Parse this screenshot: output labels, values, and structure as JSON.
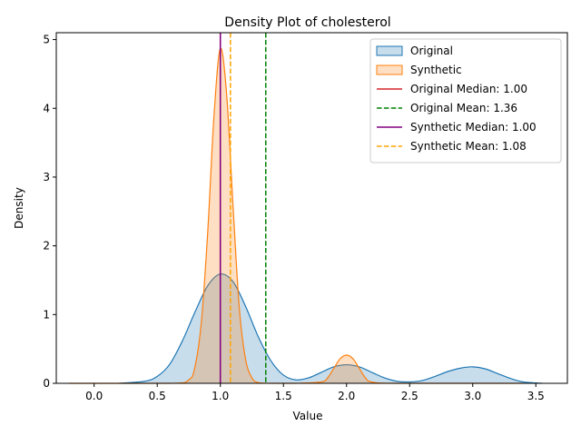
{
  "chart_data": {
    "type": "area",
    "title": "Density Plot of cholesterol",
    "xlabel": "Value",
    "ylabel": "Density",
    "xlim": [
      -0.3,
      3.75
    ],
    "ylim": [
      0,
      5.1
    ],
    "xticks": [
      "0.0",
      "0.5",
      "1.0",
      "1.5",
      "2.0",
      "2.5",
      "3.0",
      "3.5"
    ],
    "yticks": [
      "0",
      "1",
      "2",
      "3",
      "4",
      "5"
    ],
    "grid": false,
    "legend_position": "top-right",
    "series": [
      {
        "name": "Original",
        "color": "#1f77b4",
        "x": [
          0.2,
          0.4,
          0.5,
          0.6,
          0.7,
          0.8,
          0.9,
          1.0,
          1.1,
          1.2,
          1.3,
          1.4,
          1.5,
          1.6,
          1.7,
          1.8,
          1.9,
          2.0,
          2.1,
          2.2,
          2.3,
          2.4,
          2.5,
          2.6,
          2.7,
          2.8,
          2.9,
          3.0,
          3.1,
          3.2,
          3.3,
          3.4,
          3.55
        ],
        "y": [
          0.0,
          0.03,
          0.1,
          0.28,
          0.62,
          1.04,
          1.42,
          1.59,
          1.48,
          1.12,
          0.68,
          0.33,
          0.12,
          0.05,
          0.08,
          0.16,
          0.24,
          0.27,
          0.24,
          0.16,
          0.08,
          0.03,
          0.02,
          0.04,
          0.1,
          0.17,
          0.22,
          0.24,
          0.21,
          0.14,
          0.07,
          0.02,
          0.0
        ]
      },
      {
        "name": "Synthetic",
        "color": "#ff7f0e",
        "x": [
          -0.2,
          0.6,
          0.75,
          0.8,
          0.85,
          0.9,
          0.95,
          1.0,
          1.05,
          1.1,
          1.15,
          1.2,
          1.25,
          1.3,
          1.4,
          1.6,
          1.8,
          1.85,
          1.9,
          1.95,
          2.0,
          2.05,
          2.1,
          2.15,
          2.2,
          2.4,
          3.4
        ],
        "y": [
          0.0,
          0.0,
          0.05,
          0.25,
          0.9,
          2.2,
          3.9,
          4.87,
          4.2,
          2.6,
          1.1,
          0.35,
          0.08,
          0.01,
          0.0,
          0.0,
          0.02,
          0.08,
          0.22,
          0.36,
          0.41,
          0.36,
          0.22,
          0.08,
          0.02,
          0.0,
          0.0
        ]
      }
    ],
    "reference_lines": [
      {
        "label": "Original Median: 1.00",
        "x": 1.0,
        "color": "#d62728",
        "style": "solid"
      },
      {
        "label": "Original Mean: 1.36",
        "x": 1.36,
        "color": "#008000",
        "style": "dashed"
      },
      {
        "label": "Synthetic Median: 1.00",
        "x": 1.0,
        "color": "#800080",
        "style": "solid"
      },
      {
        "label": "Synthetic Mean: 1.08",
        "x": 1.08,
        "color": "#ffa500",
        "style": "dashed"
      }
    ]
  }
}
